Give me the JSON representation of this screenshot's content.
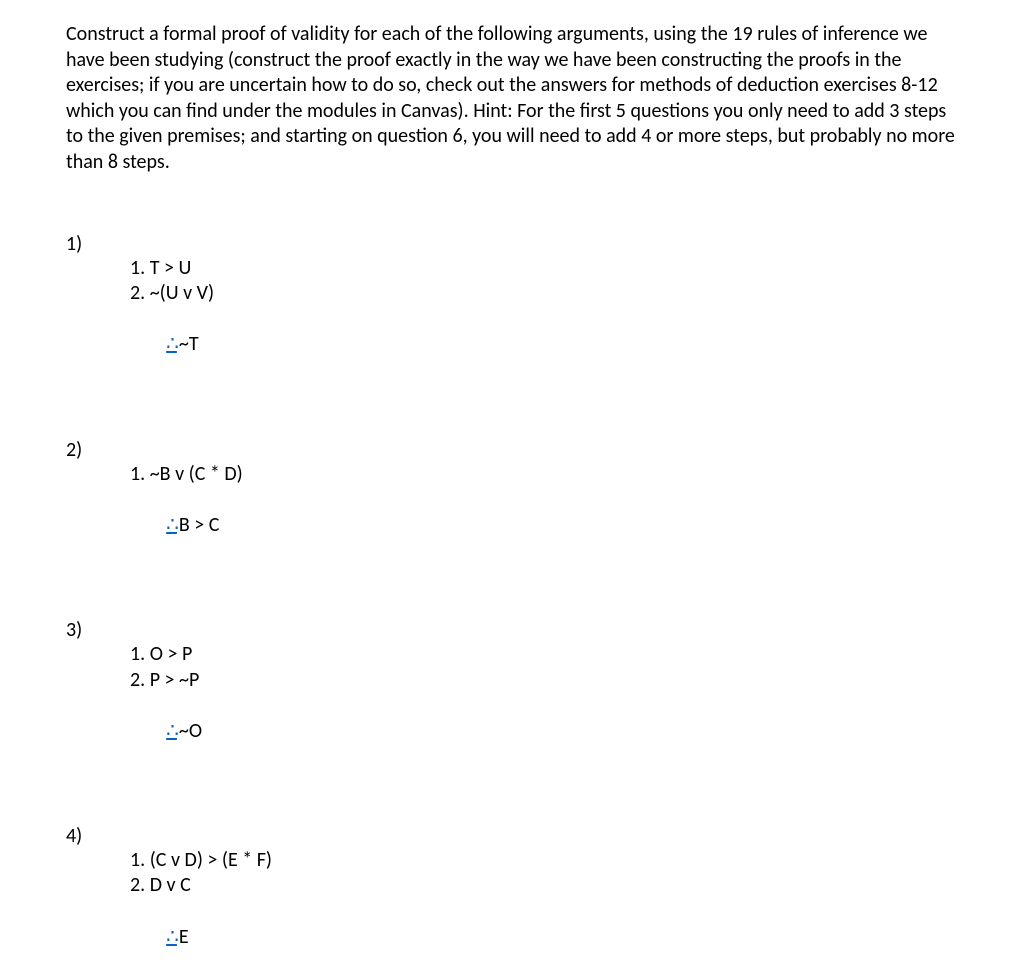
{
  "instructions": "Construct a formal proof of validity for each of the following arguments, using the 19 rules of inference we have been studying (construct the proof exactly in the way we have been constructing the proofs in the exercises; if you are uncertain how to do so, check out the answers for methods of deduction exercises 8-12 which you can find under the modules in Canvas). Hint: For the first 5 questions you only need to add 3 steps to the given premises; and starting on question 6, you will need to add 4 or more steps, but probably no more than 8 steps.",
  "therefore_symbol": "∴",
  "problems": [
    {
      "number": "1)",
      "premises": [
        "1. T > U",
        "2. ~(U v V)"
      ],
      "conclusion": "~T"
    },
    {
      "number": "2)",
      "premises": [
        "1. ~B v (C * D)"
      ],
      "conclusion": "B > C"
    },
    {
      "number": "3)",
      "premises": [
        "1. O > P",
        "2. P > ~P"
      ],
      "conclusion": "~O"
    },
    {
      "number": "4)",
      "premises": [
        "1. (C v D) > (E * F)",
        "2. D v C"
      ],
      "conclusion": "E"
    }
  ]
}
